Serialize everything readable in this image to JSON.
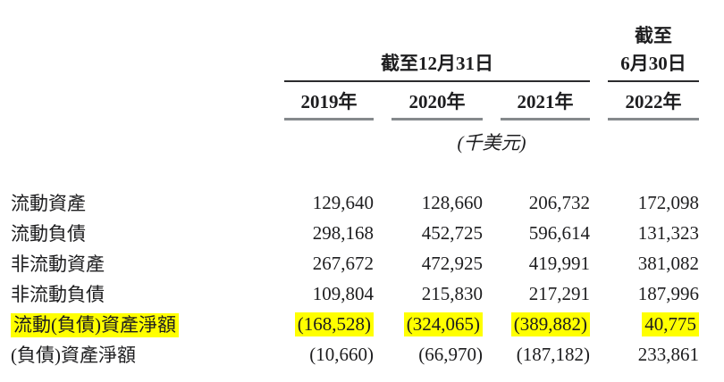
{
  "table": {
    "header": {
      "as_of_top": "截至",
      "group_label": "截至12月31日",
      "single_label": "6月30日",
      "years": [
        "2019年",
        "2020年",
        "2021年",
        "2022年"
      ],
      "unit_label": "(千美元)"
    },
    "rows": [
      {
        "label": "流動資產",
        "values": [
          "129,640",
          "128,660",
          "206,732",
          "172,098"
        ],
        "highlight": false
      },
      {
        "label": "流動負債",
        "values": [
          "298,168",
          "452,725",
          "596,614",
          "131,323"
        ],
        "highlight": false
      },
      {
        "label": "非流動資產",
        "values": [
          "267,672",
          "472,925",
          "419,991",
          "381,082"
        ],
        "highlight": false
      },
      {
        "label": "非流動負債",
        "values": [
          "109,804",
          "215,830",
          "217,291",
          "187,996"
        ],
        "highlight": false
      },
      {
        "label": "流動(負債)資產淨額",
        "values": [
          "(168,528)",
          "(324,065)",
          "(389,882)",
          "40,775"
        ],
        "highlight": true
      },
      {
        "label": "(負債)資產淨額",
        "values": [
          "(10,660)",
          "(66,970)",
          "(187,182)",
          "233,861"
        ],
        "highlight": false
      }
    ],
    "colors": {
      "highlight": "#ffff00",
      "text": "#1d1d1f",
      "rule_dark": "#2b2b2d",
      "rule_gray": "#85898c"
    }
  }
}
